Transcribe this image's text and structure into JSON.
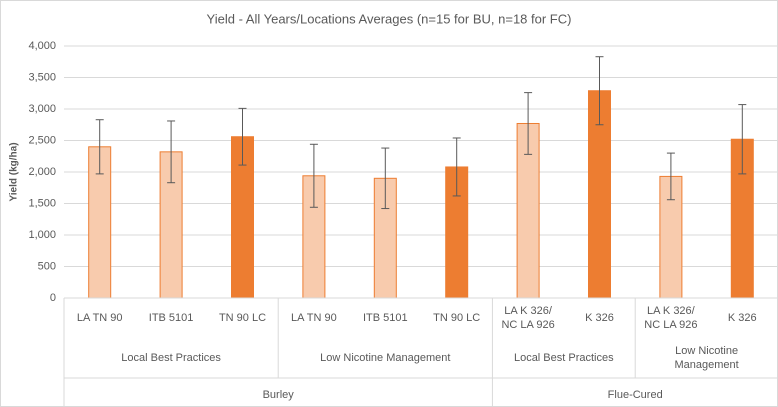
{
  "chart_data": {
    "type": "bar",
    "title": "Yield - All Years/Locations Averages (n=15 for BU, n=18 for FC)",
    "y_label": "Yield (kg/ha)",
    "categories": [
      "LA TN 90",
      "ITB 5101",
      "TN 90 LC",
      "LA TN 90",
      "ITB 5101",
      "TN 90 LC",
      "LA K 326/ NC LA 926",
      "K 326",
      "LA K 326/ NC LA 926",
      "K 326"
    ],
    "values": [
      2400,
      2320,
      2560,
      1940,
      1900,
      2080,
      2770,
      3290,
      1930,
      2520
    ],
    "errors": [
      430,
      490,
      450,
      500,
      480,
      460,
      490,
      540,
      370,
      550
    ],
    "colors": [
      "#f8cbad",
      "#f8cbad",
      "#ed7d31",
      "#f8cbad",
      "#f8cbad",
      "#ed7d31",
      "#f8cbad",
      "#ed7d31",
      "#f8cbad",
      "#ed7d31"
    ],
    "groups": [
      {
        "label": "Local Best Practices",
        "count": 3
      },
      {
        "label": "Low Nicotine Management",
        "count": 3
      },
      {
        "label": "Local Best Practices",
        "count": 2
      },
      {
        "label": "Low Nicotine Management",
        "count": 2
      }
    ],
    "supergroups": [
      {
        "label": "Burley",
        "count": 6
      },
      {
        "label": "Flue-Cured",
        "count": 4
      }
    ],
    "ylim": [
      0,
      4000
    ],
    "yticks": [
      0,
      {
        "value": 500,
        "label": "500"
      },
      {
        "value": 1000,
        "label": "1,000"
      },
      {
        "value": 1500,
        "label": "1,500"
      },
      {
        "value": 2000,
        "label": "2,000"
      },
      {
        "value": 2500,
        "label": "2,500"
      },
      {
        "value": 3000,
        "label": "3,000"
      },
      {
        "value": 3500,
        "label": "3,500"
      },
      {
        "value": 4000,
        "label": "4,000"
      }
    ],
    "grid": true
  }
}
